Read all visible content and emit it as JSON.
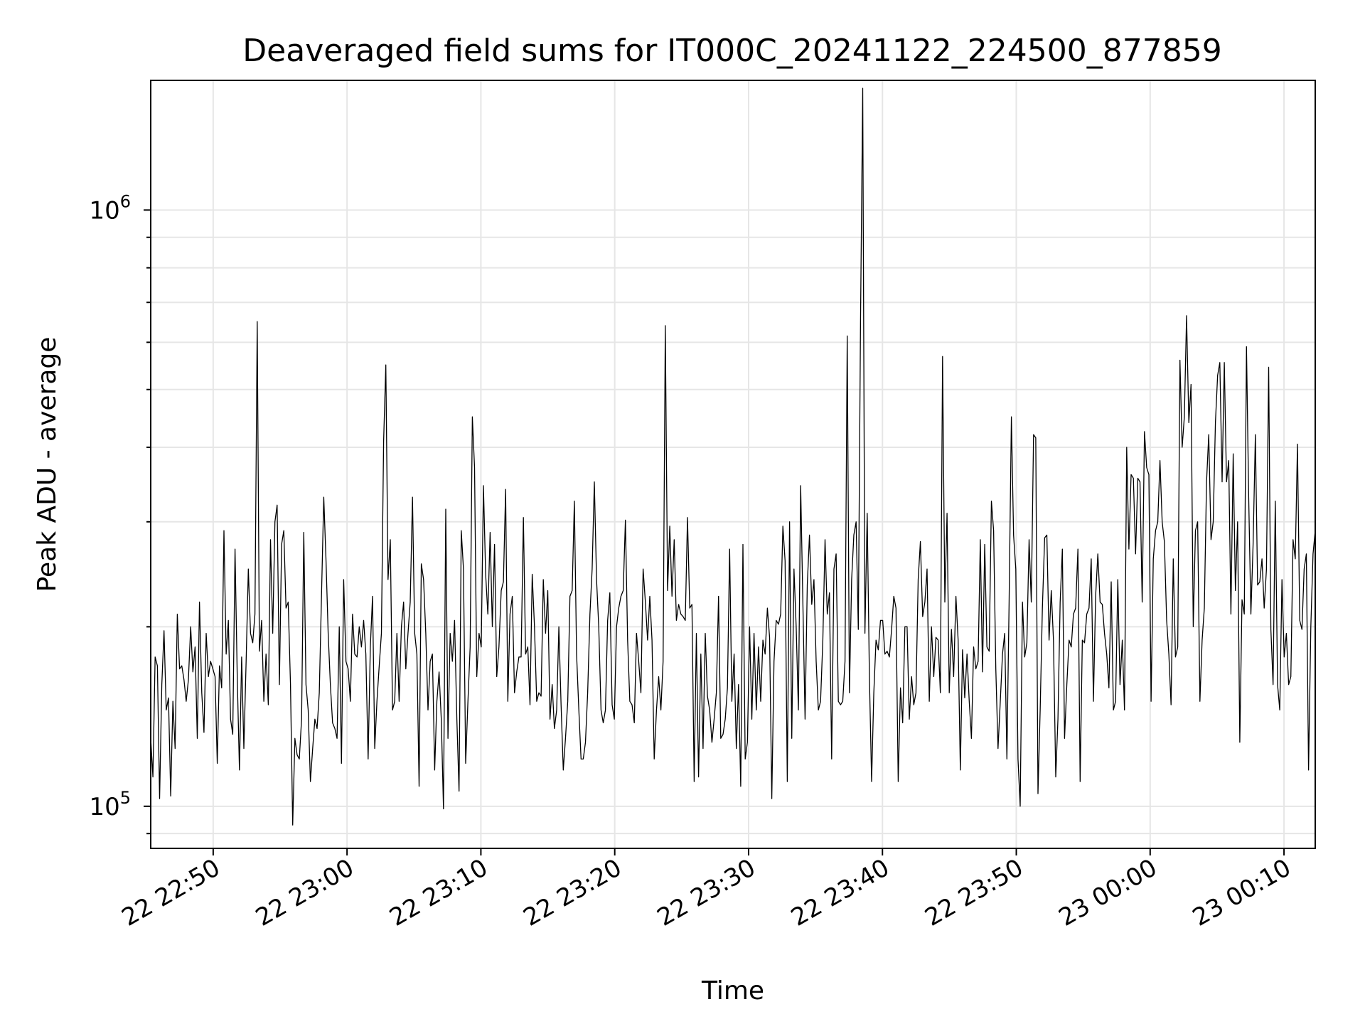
{
  "chart_data": {
    "type": "line",
    "title": "Deaveraged field sums for IT000C_20241122_224500_877859",
    "xlabel": "Time",
    "ylabel": "Peak ADU - average",
    "yscale": "log",
    "xlim": [
      "2024-11-22 22:45:20",
      "2024-11-23 00:12:20"
    ],
    "ylim": [
      85000,
      1650000
    ],
    "grid": true,
    "line_color": "#000000",
    "grid_color": "#e6e6e6",
    "x_ticks": [
      {
        "value": "2024-11-22 22:50:00",
        "label": "22 22:50"
      },
      {
        "value": "2024-11-22 23:00:00",
        "label": "22 23:00"
      },
      {
        "value": "2024-11-22 23:10:00",
        "label": "22 23:10"
      },
      {
        "value": "2024-11-22 23:20:00",
        "label": "22 23:20"
      },
      {
        "value": "2024-11-22 23:30:00",
        "label": "22 23:30"
      },
      {
        "value": "2024-11-22 23:40:00",
        "label": "22 23:40"
      },
      {
        "value": "2024-11-22 23:50:00",
        "label": "22 23:50"
      },
      {
        "value": "2024-11-23 00:00:00",
        "label": "23 00:00"
      },
      {
        "value": "2024-11-23 00:10:00",
        "label": "23 00:10"
      }
    ],
    "y_ticks": [
      {
        "value": 100000,
        "base": "10",
        "exp": "5"
      },
      {
        "value": 1000000,
        "base": "10",
        "exp": "6"
      }
    ],
    "series": [
      {
        "x_start": "2024-11-22 22:45:20",
        "x_end": "2024-11-23 00:12:20",
        "values": [
          130000,
          112000,
          178000,
          172000,
          103000,
          160000,
          197000,
          145000,
          152000,
          104000,
          150000,
          125000,
          210000,
          170000,
          172000,
          163000,
          150000,
          163000,
          200000,
          168000,
          185000,
          130000,
          220000,
          155000,
          133000,
          195000,
          165000,
          175000,
          170000,
          165000,
          118000,
          172000,
          158000,
          290000,
          180000,
          205000,
          140000,
          132000,
          270000,
          165000,
          115000,
          178000,
          125000,
          175000,
          250000,
          195000,
          188000,
          210000,
          650000,
          182000,
          205000,
          150000,
          180000,
          148000,
          280000,
          195000,
          300000,
          320000,
          160000,
          275000,
          290000,
          215000,
          220000,
          160000,
          93000,
          130000,
          122000,
          120000,
          140000,
          288000,
          160000,
          145000,
          110000,
          125000,
          140000,
          135000,
          155000,
          225000,
          330000,
          260000,
          195000,
          160000,
          138000,
          135000,
          130000,
          200000,
          118000,
          240000,
          175000,
          170000,
          150000,
          210000,
          180000,
          178000,
          200000,
          185000,
          205000,
          180000,
          120000,
          185000,
          225000,
          125000,
          150000,
          172000,
          195000,
          410000,
          550000,
          240000,
          280000,
          145000,
          150000,
          195000,
          150000,
          200000,
          220000,
          170000,
          195000,
          220000,
          330000,
          195000,
          180000,
          108000,
          255000,
          240000,
          195000,
          145000,
          175000,
          180000,
          115000,
          150000,
          168000,
          140000,
          99000,
          315000,
          130000,
          195000,
          175000,
          205000,
          140000,
          106000,
          290000,
          250000,
          118000,
          150000,
          185000,
          450000,
          370000,
          165000,
          195000,
          185000,
          345000,
          245000,
          210000,
          288000,
          200000,
          275000,
          165000,
          185000,
          230000,
          238000,
          340000,
          150000,
          210000,
          225000,
          155000,
          168000,
          178000,
          178000,
          305000,
          180000,
          185000,
          148000,
          245000,
          200000,
          150000,
          155000,
          153000,
          240000,
          195000,
          230000,
          140000,
          160000,
          135000,
          145000,
          200000,
          148000,
          115000,
          130000,
          150000,
          225000,
          230000,
          325000,
          180000,
          145000,
          120000,
          120000,
          128000,
          155000,
          210000,
          250000,
          350000,
          240000,
          200000,
          145000,
          138000,
          145000,
          205000,
          228000,
          148000,
          140000,
          200000,
          215000,
          225000,
          230000,
          302000,
          190000,
          150000,
          148000,
          138000,
          195000,
          175000,
          155000,
          250000,
          220000,
          190000,
          225000,
          190000,
          120000,
          145000,
          165000,
          145000,
          175000,
          640000,
          230000,
          295000,
          225000,
          280000,
          205000,
          218000,
          210000,
          208000,
          205000,
          305000,
          215000,
          218000,
          110000,
          195000,
          112000,
          180000,
          125000,
          195000,
          153000,
          145000,
          128000,
          140000,
          155000,
          225000,
          130000,
          132000,
          140000,
          158000,
          270000,
          150000,
          180000,
          125000,
          160000,
          108000,
          275000,
          120000,
          128000,
          200000,
          140000,
          195000,
          145000,
          185000,
          150000,
          190000,
          180000,
          215000,
          192000,
          103000,
          175000,
          205000,
          202000,
          210000,
          295000,
          258000,
          110000,
          300000,
          130000,
          250000,
          200000,
          145000,
          345000,
          220000,
          140000,
          235000,
          285000,
          218000,
          240000,
          175000,
          145000,
          150000,
          190000,
          280000,
          210000,
          228000,
          120000,
          250000,
          265000,
          150000,
          148000,
          150000,
          175000,
          615000,
          155000,
          240000,
          285000,
          300000,
          198000,
          650000,
          1600000,
          195000,
          310000,
          165000,
          110000,
          155000,
          190000,
          183000,
          205000,
          205000,
          180000,
          182000,
          178000,
          198000,
          225000,
          215000,
          110000,
          158000,
          138000,
          200000,
          200000,
          140000,
          165000,
          148000,
          155000,
          240000,
          278000,
          208000,
          220000,
          250000,
          150000,
          200000,
          165000,
          192000,
          190000,
          155000,
          568000,
          220000,
          310000,
          155000,
          198000,
          165000,
          225000,
          190000,
          115000,
          183000,
          152000,
          180000,
          150000,
          130000,
          185000,
          170000,
          175000,
          280000,
          168000,
          275000,
          185000,
          182000,
          325000,
          290000,
          170000,
          125000,
          150000,
          180000,
          195000,
          120000,
          220000,
          450000,
          285000,
          250000,
          120000,
          100000,
          220000,
          178000,
          188000,
          280000,
          220000,
          420000,
          415000,
          105000,
          145000,
          215000,
          282000,
          285000,
          190000,
          230000,
          190000,
          112000,
          140000,
          220000,
          270000,
          130000,
          160000,
          190000,
          185000,
          210000,
          215000,
          270000,
          110000,
          190000,
          188000,
          210000,
          215000,
          260000,
          150000,
          225000,
          265000,
          220000,
          218000,
          195000,
          180000,
          158000,
          238000,
          145000,
          150000,
          240000,
          160000,
          190000,
          145000,
          400000,
          270000,
          360000,
          355000,
          265000,
          355000,
          350000,
          220000,
          425000,
          370000,
          360000,
          150000,
          260000,
          290000,
          300000,
          380000,
          300000,
          278000,
          205000,
          180000,
          148000,
          260000,
          178000,
          185000,
          560000,
          400000,
          450000,
          665000,
          440000,
          510000,
          200000,
          290000,
          300000,
          150000,
          190000,
          215000,
          350000,
          420000,
          280000,
          300000,
          440000,
          528000,
          555000,
          350000,
          555000,
          350000,
          380000,
          210000,
          390000,
          230000,
          300000,
          128000,
          222000,
          210000,
          590000,
          330000,
          210000,
          275000,
          420000,
          235000,
          238000,
          260000,
          215000,
          250000,
          545000,
          198000,
          160000,
          325000,
          160000,
          145000,
          240000,
          178000,
          195000,
          160000,
          165000,
          280000,
          260000,
          405000,
          205000,
          198000,
          250000,
          265000,
          115000,
          200000,
          265000,
          290000
        ]
      }
    ]
  }
}
